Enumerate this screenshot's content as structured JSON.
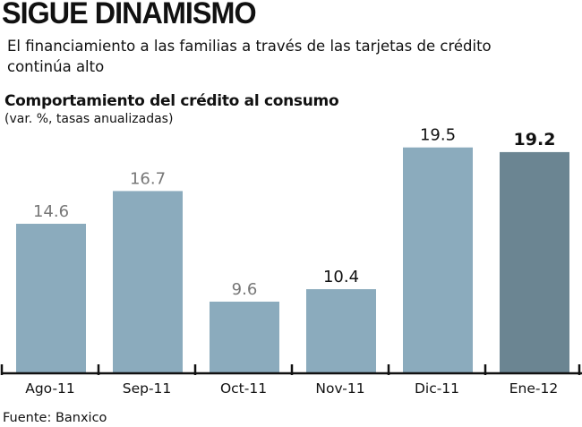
{
  "header": {
    "title": "SIGUE DINAMISMO",
    "subtitle": "El financiamiento a las familias a través de las tarjetas de crédito continúa alto"
  },
  "source": "Fuente: Banxico",
  "colors": {
    "bar": "#8babbd",
    "highlight": "#6b8592"
  },
  "chart_data": {
    "type": "bar",
    "title": "Comportamiento del crédito al consumo",
    "subtitle": "(var. %, tasas anualizadas)",
    "categories": [
      "Ago-11",
      "Sep-11",
      "Oct-11",
      "Nov-11",
      "Dic-11",
      "Ene-12"
    ],
    "values": [
      14.6,
      16.7,
      9.6,
      10.4,
      19.5,
      19.2
    ],
    "labels": [
      "14.6",
      "16.7",
      "9.6",
      "10.4",
      "19.5",
      "19.2"
    ],
    "highlight_index": 5,
    "xlabel": "",
    "ylabel": "",
    "ylim": [
      5,
      20
    ],
    "grid": false
  }
}
